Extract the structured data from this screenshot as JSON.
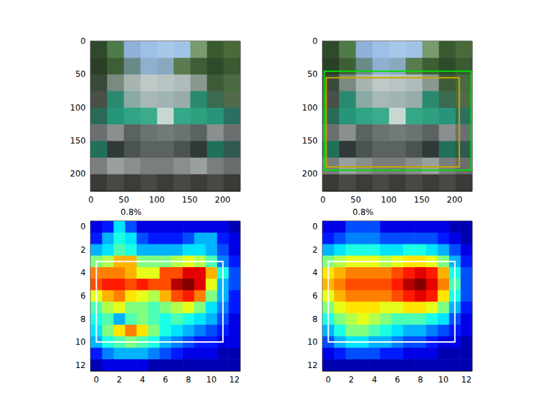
{
  "chart_data": [
    {
      "type": "image",
      "xlim": [
        -0.5,
        226.5
      ],
      "ylim": [
        226.5,
        -0.5
      ],
      "xticks": [
        0,
        50,
        100,
        150,
        200
      ],
      "yticks": [
        0,
        50,
        100,
        150,
        200
      ],
      "image": [
        [
          "#2e4a2a",
          "#4f7a4a",
          "#8fb0d8",
          "#9cc0e6",
          "#a8c8ea",
          "#a0c4e8",
          "#7a9a70",
          "#3a5a30",
          "#4a6a3a"
        ],
        [
          "#2a4026",
          "#3e5e36",
          "#6a8a8a",
          "#90b0d0",
          "#8aa8c0",
          "#5a7a50",
          "#3e5e36",
          "#2e4a2a",
          "#3a5a32"
        ],
        [
          "#3a4a3a",
          "#7a8a80",
          "#a8b4b0",
          "#c0c8c8",
          "#b8c4c4",
          "#b0bcbc",
          "#8a9890",
          "#3e5a36",
          "#4a6a42"
        ],
        [
          "#4a5048",
          "#2a8a70",
          "#8aaaa4",
          "#a8b8b8",
          "#a0b4b4",
          "#98acac",
          "#2a8a70",
          "#3a6a50",
          "#506a4a"
        ],
        [
          "#2a6a58",
          "#26957a",
          "#30a585",
          "#3aab8c",
          "#c8d8d0",
          "#34a888",
          "#2ea080",
          "#28957a",
          "#2a7060"
        ],
        [
          "#6a7070",
          "#8a9090",
          "#5a6262",
          "#6a7272",
          "#727a7a",
          "#6a7272",
          "#5a6262",
          "#8a9090",
          "#6a7070"
        ],
        [
          "#20705a",
          "#303838",
          "#4a5252",
          "#5a6262",
          "#5a6262",
          "#4a5252",
          "#303838",
          "#20705a",
          "#305a50"
        ],
        [
          "#7a7e7c",
          "#9aa0a0",
          "#8a8e8c",
          "#7a7e7c",
          "#7a7e7c",
          "#8a8e8c",
          "#9aa0a0",
          "#7a7e7c",
          "#6a6e6c"
        ],
        [
          "#3a3a36",
          "#4a4844",
          "#3e3c38",
          "#4a4844",
          "#3e3c38",
          "#4a4844",
          "#3e3c38",
          "#4a4844",
          "#3a3a36"
        ]
      ]
    },
    {
      "type": "image",
      "xlim": [
        -0.5,
        226.5
      ],
      "ylim": [
        226.5,
        -0.5
      ],
      "xticks": [
        0,
        50,
        100,
        150,
        200
      ],
      "yticks": [
        0,
        50,
        100,
        150,
        200
      ],
      "image": [
        [
          "#2e4a2a",
          "#4f7a4a",
          "#8fb0d8",
          "#9cc0e6",
          "#a8c8ea",
          "#a0c4e8",
          "#7a9a70",
          "#3a5a30",
          "#4a6a3a"
        ],
        [
          "#2a4026",
          "#3e5e36",
          "#6a8a8a",
          "#90b0d0",
          "#8aa8c0",
          "#5a7a50",
          "#3e5e36",
          "#2e4a2a",
          "#3a5a32"
        ],
        [
          "#3a4a3a",
          "#7a8a80",
          "#a8b4b0",
          "#c0c8c8",
          "#b8c4c4",
          "#b0bcbc",
          "#8a9890",
          "#3e5a36",
          "#4a6a42"
        ],
        [
          "#4a5048",
          "#2a8a70",
          "#8aaaa4",
          "#a8b8b8",
          "#a0b4b4",
          "#98acac",
          "#2a8a70",
          "#3a6a50",
          "#506a4a"
        ],
        [
          "#2a6a58",
          "#26957a",
          "#30a585",
          "#3aab8c",
          "#c8d8d0",
          "#34a888",
          "#2ea080",
          "#28957a",
          "#2a7060"
        ],
        [
          "#6a7070",
          "#8a9090",
          "#5a6262",
          "#6a7272",
          "#727a7a",
          "#6a7272",
          "#5a6262",
          "#8a9090",
          "#6a7070"
        ],
        [
          "#20705a",
          "#303838",
          "#4a5252",
          "#5a6262",
          "#5a6262",
          "#4a5252",
          "#303838",
          "#20705a",
          "#305a50"
        ],
        [
          "#7a7e7c",
          "#9aa0a0",
          "#8a8e8c",
          "#7a7e7c",
          "#7a7e7c",
          "#8a8e8c",
          "#9aa0a0",
          "#7a7e7c",
          "#6a6e6c"
        ],
        [
          "#3a3a36",
          "#4a4844",
          "#3e3c38",
          "#4a4844",
          "#3e3c38",
          "#4a4844",
          "#3e3c38",
          "#4a4844",
          "#3a3a36"
        ]
      ],
      "boxes": [
        {
          "color": "#00e000",
          "coords": [
            2,
            45,
            225,
            195
          ]
        },
        {
          "color": "#c8a800",
          "coords": [
            5,
            55,
            207,
            190
          ]
        }
      ]
    },
    {
      "type": "heatmap",
      "title": "0.8%",
      "xlim": [
        -0.5,
        12.5
      ],
      "ylim": [
        12.5,
        -0.5
      ],
      "xticks": [
        0,
        2,
        4,
        6,
        8,
        10,
        12
      ],
      "yticks": [
        0,
        2,
        4,
        6,
        8,
        10,
        12
      ],
      "zlim": [
        0,
        1
      ],
      "cells": [
        [
          0.1,
          0.15,
          0.35,
          0.2,
          0.1,
          0.1,
          0.1,
          0.1,
          0.1,
          0.1,
          0.1,
          0.1,
          0.05
        ],
        [
          0.15,
          0.3,
          0.4,
          0.35,
          0.2,
          0.15,
          0.15,
          0.15,
          0.2,
          0.3,
          0.3,
          0.15,
          0.1
        ],
        [
          0.3,
          0.35,
          0.45,
          0.4,
          0.3,
          0.3,
          0.3,
          0.3,
          0.35,
          0.35,
          0.3,
          0.2,
          0.1
        ],
        [
          0.5,
          0.55,
          0.7,
          0.7,
          0.5,
          0.5,
          0.5,
          0.55,
          0.6,
          0.55,
          0.45,
          0.25,
          0.15
        ],
        [
          0.75,
          0.75,
          0.75,
          0.7,
          0.6,
          0.6,
          0.8,
          0.8,
          0.9,
          0.9,
          0.7,
          0.4,
          0.2
        ],
        [
          0.8,
          0.85,
          0.85,
          0.8,
          0.85,
          0.8,
          0.8,
          0.95,
          1.0,
          0.9,
          0.6,
          0.3,
          0.2
        ],
        [
          0.6,
          0.7,
          0.75,
          0.65,
          0.6,
          0.55,
          0.7,
          0.8,
          0.85,
          0.75,
          0.5,
          0.3,
          0.15
        ],
        [
          0.45,
          0.55,
          0.6,
          0.5,
          0.5,
          0.45,
          0.5,
          0.55,
          0.6,
          0.5,
          0.35,
          0.25,
          0.15
        ],
        [
          0.4,
          0.45,
          0.3,
          0.45,
          0.5,
          0.45,
          0.4,
          0.45,
          0.4,
          0.35,
          0.3,
          0.2,
          0.1
        ],
        [
          0.35,
          0.5,
          0.65,
          0.75,
          0.65,
          0.5,
          0.4,
          0.35,
          0.3,
          0.25,
          0.2,
          0.15,
          0.1
        ],
        [
          0.3,
          0.4,
          0.45,
          0.5,
          0.45,
          0.4,
          0.3,
          0.25,
          0.2,
          0.15,
          0.15,
          0.1,
          0.1
        ],
        [
          0.15,
          0.25,
          0.3,
          0.3,
          0.3,
          0.25,
          0.2,
          0.15,
          0.1,
          0.1,
          0.1,
          0.05,
          0.05
        ],
        [
          0.05,
          0.1,
          0.1,
          0.1,
          0.1,
          0.05,
          0.05,
          0.05,
          0.05,
          0.05,
          0.05,
          0.05,
          0.05
        ]
      ],
      "boxes": [
        {
          "color": "#ffffff",
          "coords": [
            0,
            3,
            11,
            10
          ]
        }
      ]
    },
    {
      "type": "heatmap",
      "title": "0.8%",
      "xlim": [
        -0.5,
        12.5
      ],
      "ylim": [
        12.5,
        -0.5
      ],
      "xticks": [
        0,
        2,
        4,
        6,
        8,
        10,
        12
      ],
      "yticks": [
        0,
        2,
        4,
        6,
        8,
        10,
        12
      ],
      "zlim": [
        0,
        1
      ],
      "cells": [
        [
          0.1,
          0.1,
          0.2,
          0.2,
          0.2,
          0.1,
          0.1,
          0.1,
          0.1,
          0.1,
          0.1,
          0.05,
          0.05
        ],
        [
          0.15,
          0.2,
          0.25,
          0.25,
          0.25,
          0.2,
          0.2,
          0.2,
          0.2,
          0.2,
          0.15,
          0.1,
          0.05
        ],
        [
          0.3,
          0.35,
          0.4,
          0.4,
          0.4,
          0.35,
          0.35,
          0.4,
          0.4,
          0.35,
          0.3,
          0.2,
          0.1
        ],
        [
          0.5,
          0.55,
          0.6,
          0.6,
          0.6,
          0.55,
          0.6,
          0.65,
          0.65,
          0.6,
          0.5,
          0.3,
          0.15
        ],
        [
          0.65,
          0.7,
          0.75,
          0.75,
          0.75,
          0.75,
          0.8,
          0.85,
          0.9,
          0.85,
          0.7,
          0.4,
          0.2
        ],
        [
          0.7,
          0.75,
          0.8,
          0.8,
          0.8,
          0.8,
          0.85,
          0.95,
          1.0,
          0.9,
          0.75,
          0.45,
          0.2
        ],
        [
          0.6,
          0.7,
          0.75,
          0.75,
          0.75,
          0.75,
          0.8,
          0.85,
          0.9,
          0.85,
          0.65,
          0.4,
          0.2
        ],
        [
          0.5,
          0.6,
          0.65,
          0.65,
          0.65,
          0.6,
          0.6,
          0.65,
          0.65,
          0.6,
          0.5,
          0.3,
          0.15
        ],
        [
          0.4,
          0.5,
          0.55,
          0.6,
          0.55,
          0.5,
          0.45,
          0.45,
          0.45,
          0.4,
          0.35,
          0.2,
          0.1
        ],
        [
          0.3,
          0.4,
          0.5,
          0.5,
          0.45,
          0.4,
          0.35,
          0.3,
          0.3,
          0.25,
          0.2,
          0.15,
          0.1
        ],
        [
          0.2,
          0.3,
          0.35,
          0.35,
          0.3,
          0.3,
          0.25,
          0.2,
          0.2,
          0.15,
          0.1,
          0.1,
          0.05
        ],
        [
          0.1,
          0.15,
          0.2,
          0.2,
          0.2,
          0.15,
          0.15,
          0.1,
          0.1,
          0.1,
          0.05,
          0.05,
          0.05
        ],
        [
          0.05,
          0.05,
          0.05,
          0.05,
          0.05,
          0.05,
          0.05,
          0.05,
          0.05,
          0.05,
          0.05,
          0.05,
          0.05
        ]
      ],
      "boxes": [
        {
          "color": "#ffffff",
          "coords": [
            0,
            3,
            11,
            10
          ]
        }
      ]
    }
  ]
}
